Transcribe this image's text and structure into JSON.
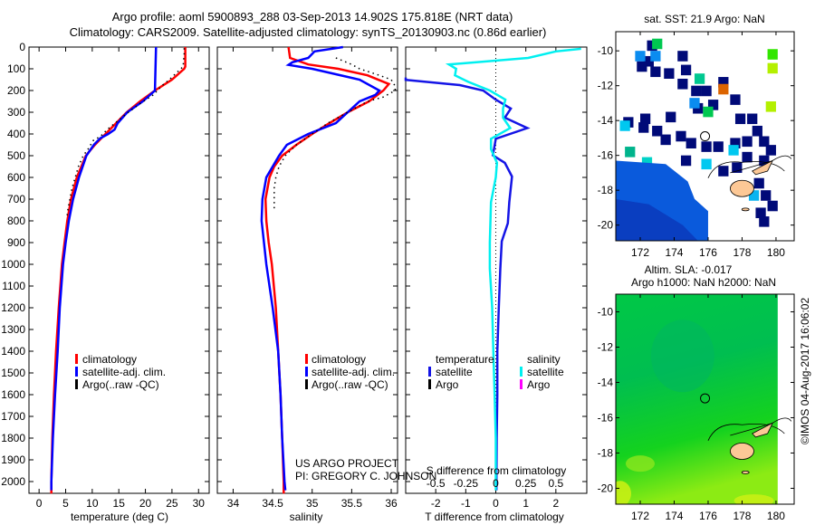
{
  "header": {
    "title_line1": "Argo profile: aoml 5900893_288 03-Sep-2013 14.902S 175.818E (NRT data)",
    "title_line2": "Climatology: CARS2009. Satellite-adjusted climatology: synTS_20130903.nc (0.86d earlier)"
  },
  "colors": {
    "climatology": "#ff0000",
    "satellite": "#0000ff",
    "argo": "#000000",
    "t_diff_satellite": "#1414e6",
    "s_diff_satellite": "#00f0f0",
    "s_diff_argo": "#ff00ff",
    "land": "#fcc896"
  },
  "chart_data": [
    {
      "type": "line",
      "title": "",
      "xlabel": "temperature (deg C)",
      "ylabel": "",
      "xlim": [
        -1.9,
        32
      ],
      "ylim": [
        2055,
        0
      ],
      "xticks": [
        0,
        5,
        10,
        15,
        20,
        25,
        30
      ],
      "yticks": [
        0,
        100,
        200,
        300,
        400,
        500,
        600,
        700,
        800,
        900,
        1000,
        1100,
        1200,
        1300,
        1400,
        1500,
        1600,
        1700,
        1800,
        1900,
        2000
      ],
      "legend": {
        "placement": "lower-middle",
        "entries": [
          "climatology",
          "satellite-adj. clim.",
          "Argo(..raw -QC)"
        ]
      },
      "series": [
        {
          "name": "climatology",
          "depth": [
            0,
            90,
            100,
            150,
            200,
            250,
            300,
            350,
            400,
            450,
            500,
            600,
            700,
            800,
            900,
            1000,
            1200,
            1400,
            1600,
            1800,
            2000,
            2055
          ],
          "values": [
            27.5,
            27.5,
            27.3,
            25,
            21.8,
            19,
            16.5,
            14.5,
            12.5,
            10.5,
            8.8,
            7.1,
            6.0,
            5.3,
            4.8,
            4.3,
            3.7,
            3.2,
            2.8,
            2.5,
            2.3,
            2.3
          ]
        },
        {
          "name": "satellite-adj. clim.",
          "depth": [
            0,
            200,
            250,
            300,
            350,
            380,
            400,
            420,
            450,
            500,
            600,
            700,
            800,
            900,
            1000,
            1200,
            1400,
            1600,
            1800,
            2000,
            2040
          ],
          "values": [
            22,
            21.8,
            19.5,
            16.6,
            14.8,
            14.2,
            13.0,
            11.5,
            10.3,
            8.9,
            7.5,
            6.4,
            5.6,
            5.0,
            4.5,
            3.9,
            3.5,
            3.0,
            2.6,
            2.3,
            2.3
          ]
        },
        {
          "name": "Argo(..raw -QC)",
          "depth": [
            5,
            30,
            60,
            90,
            120,
            150,
            180,
            220,
            260,
            300,
            340,
            380,
            410,
            430,
            470,
            500,
            550,
            600,
            650,
            700,
            750,
            790
          ],
          "values": [
            27.3,
            27.3,
            27.2,
            27.1,
            25.8,
            24.5,
            23,
            21.5,
            19,
            16.8,
            14.8,
            12.8,
            11.6,
            10.2,
            9.2,
            8.3,
            7.4,
            6.8,
            6.2,
            5.8,
            5.4,
            5.2
          ]
        }
      ]
    },
    {
      "type": "line",
      "title": "",
      "xlabel": "salinity",
      "ylabel": "",
      "xlim": [
        33.8,
        36.08
      ],
      "ylim": [
        2055,
        0
      ],
      "xticks": [
        34,
        34.5,
        35,
        35.5,
        36
      ],
      "legend": {
        "placement": "lower-middle",
        "entries": [
          "climatology",
          "satellite-adj. clim.",
          "Argo(..raw -QC)"
        ]
      },
      "series": [
        {
          "name": "climatology",
          "depth": [
            0,
            50,
            80,
            100,
            130,
            170,
            200,
            250,
            300,
            350,
            400,
            450,
            500,
            550,
            600,
            700,
            800,
            900,
            1000,
            1200,
            1400,
            1600,
            1800,
            2000,
            2055
          ],
          "values": [
            34.7,
            34.72,
            34.95,
            35.33,
            35.7,
            35.97,
            35.9,
            35.72,
            35.45,
            35.22,
            35.0,
            34.8,
            34.62,
            34.52,
            34.46,
            34.41,
            34.42,
            34.45,
            34.49,
            34.54,
            34.57,
            34.6,
            34.62,
            34.64,
            34.64
          ]
        },
        {
          "name": "satellite-adj. clim.",
          "depth": [
            0,
            20,
            50,
            70,
            82,
            100,
            150,
            200,
            220,
            250,
            300,
            350,
            400,
            450,
            500,
            550,
            600,
            700,
            800,
            1000,
            1200,
            1400,
            1600,
            1800,
            2000,
            2040
          ],
          "values": [
            35.39,
            35.03,
            34.95,
            34.75,
            34.7,
            35.0,
            35.6,
            35.85,
            35.8,
            35.6,
            35.45,
            35.3,
            34.95,
            34.68,
            34.58,
            34.5,
            34.42,
            34.37,
            34.36,
            34.42,
            34.5,
            34.57,
            34.6,
            34.62,
            34.65,
            34.66
          ]
        },
        {
          "name": "Argo(..raw -QC)",
          "depth": [
            50,
            80,
            100,
            130,
            150,
            180,
            200,
            230,
            250,
            300,
            350,
            400,
            450,
            500,
            550,
            600,
            650,
            700,
            750
          ],
          "values": [
            35.3,
            35.5,
            35.6,
            35.85,
            36.0,
            36.05,
            36.05,
            35.9,
            35.7,
            35.45,
            35.2,
            35.0,
            34.8,
            34.66,
            34.58,
            34.54,
            34.52,
            34.52,
            34.52
          ]
        }
      ]
    },
    {
      "type": "line",
      "title": "",
      "xlabel": "T difference from climatology",
      "xlabel2": "S difference from climatology",
      "xlim": [
        -3,
        3.03
      ],
      "xticks": [
        -2,
        -1,
        0,
        1,
        2
      ],
      "xticks2": [
        -0.5,
        -0.25,
        0,
        0.25,
        0.5
      ],
      "xtick2_labels": [
        "-0.5",
        "-0.25",
        "0",
        "0.25",
        "0.5"
      ],
      "ylim": [
        2055,
        0
      ],
      "legend": {
        "placement": "lower-middle",
        "temperature_title": "temperature",
        "salinity_title": "salinity",
        "entries": [
          "satellite",
          "Argo",
          "satellite",
          "Argo"
        ]
      },
      "series": [
        {
          "name": "T satellite",
          "depth": [
            140,
            151,
            175,
            200,
            242,
            283,
            325,
            373,
            422,
            470,
            498,
            533,
            596,
            714,
            811,
            894,
            1019,
            1200,
            1400,
            1600,
            1800,
            2000,
            2040
          ],
          "values": [
            -3,
            -3,
            -1.2,
            -0.42,
            0,
            0.5,
            0.3,
            1.05,
            0,
            -0.06,
            -0.1,
            0.3,
            0.54,
            0.45,
            0.4,
            0.2,
            0.15,
            0.1,
            0.05,
            0.05,
            0.03,
            0.02,
            0.02
          ]
        },
        {
          "name": "S satellite",
          "depth": [
            8,
            20,
            50,
            80,
            100,
            130,
            160,
            200,
            242,
            283,
            325,
            373,
            422,
            470,
            533,
            600,
            714,
            900,
            1019,
            1200,
            1400,
            1600,
            1800,
            2000,
            2040
          ],
          "values": [
            0.71,
            0.5,
            0.27,
            -0.39,
            -0.33,
            -0.34,
            -0.23,
            -0.05,
            0.08,
            0.06,
            0.06,
            0.12,
            -0.04,
            -0.04,
            0.01,
            0,
            -0.04,
            -0.05,
            -0.05,
            -0.03,
            -0.02,
            -0.01,
            0,
            0,
            0
          ]
        }
      ]
    }
  ],
  "legend": {
    "climatology": "climatology",
    "satellite_adj": "satellite-adj. clim.",
    "argo": "Argo(..raw -QC)"
  },
  "credits": {
    "project": "US ARGO PROJECT",
    "pi": "PI: GREGORY C. JOHNSON",
    "imos": "©IMOS 04-Aug-2017 16:06:02"
  },
  "maps": {
    "sst": {
      "title": "sat. SST: 21.9 Argo: NaN",
      "lon_ticks": [
        172,
        174,
        176,
        178,
        180
      ],
      "lat_ticks": [
        -10,
        -12,
        -14,
        -16,
        -18,
        -20
      ],
      "lon_range": [
        170.56,
        181.07
      ],
      "lat_range": [
        -20.9,
        -8.9
      ],
      "argo_position": [
        175.818,
        -14.902
      ]
    },
    "sla": {
      "title_line1": "Altim. SLA: -0.017",
      "title_line2": "Argo h1000: NaN h2000: NaN",
      "lon_ticks": [
        172,
        174,
        176,
        178,
        180
      ],
      "lat_ticks": [
        -10,
        -12,
        -14,
        -16,
        -18,
        -20
      ],
      "lon_range": [
        170.56,
        181.07
      ],
      "lat_range": [
        -20.9,
        -9.0
      ],
      "argo_position": [
        175.818,
        -14.902
      ]
    }
  }
}
